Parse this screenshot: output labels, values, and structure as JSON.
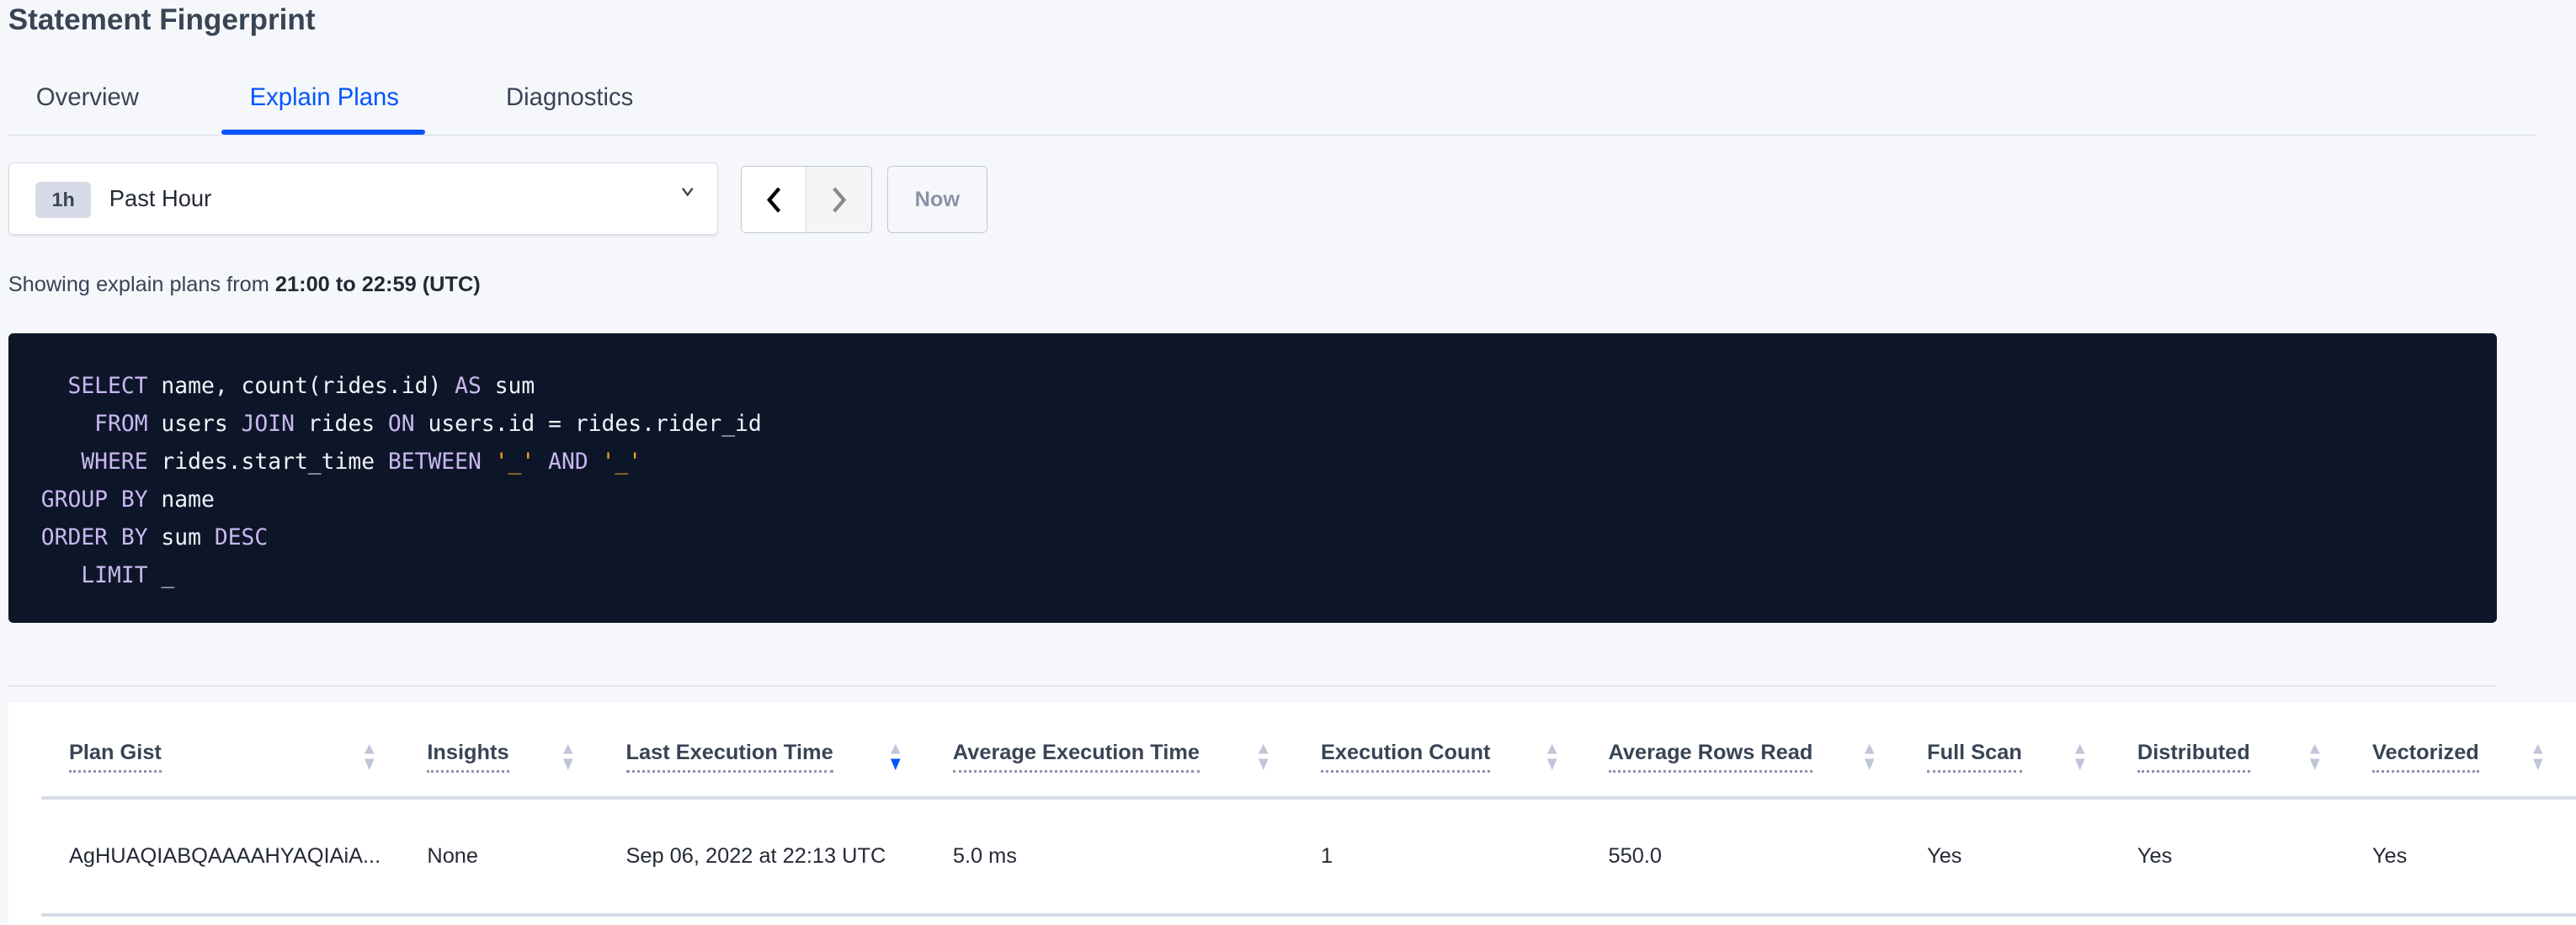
{
  "page_title": "Statement Fingerprint",
  "tabs": [
    {
      "label": "Overview",
      "active": false
    },
    {
      "label": "Explain Plans",
      "active": true
    },
    {
      "label": "Diagnostics",
      "active": false
    }
  ],
  "time_picker": {
    "badge": "1h",
    "selected": "Past Hour",
    "now_label": "Now"
  },
  "showing": {
    "prefix": "Showing explain plans from ",
    "range": "21:00 to 22:59 (UTC)"
  },
  "sql": [
    [
      [
        "kw",
        "  SELECT"
      ],
      [
        "t",
        " name, count(rides.id) "
      ],
      [
        "kw",
        "AS"
      ],
      [
        "t",
        " sum"
      ]
    ],
    [
      [
        "kw",
        "    FROM"
      ],
      [
        "t",
        " users "
      ],
      [
        "kw",
        "JOIN"
      ],
      [
        "t",
        " rides "
      ],
      [
        "kw",
        "ON"
      ],
      [
        "t",
        " users.id = rides.rider_id"
      ]
    ],
    [
      [
        "kw",
        "   WHERE"
      ],
      [
        "t",
        " rides.start_time "
      ],
      [
        "kw",
        "BETWEEN"
      ],
      [
        "t",
        " "
      ],
      [
        "str",
        "'_'"
      ],
      [
        "t",
        " "
      ],
      [
        "kw",
        "AND"
      ],
      [
        "t",
        " "
      ],
      [
        "str",
        "'_'"
      ]
    ],
    [
      [
        "kw",
        "GROUP BY"
      ],
      [
        "t",
        " name"
      ]
    ],
    [
      [
        "kw",
        "ORDER BY"
      ],
      [
        "t",
        " sum "
      ],
      [
        "kw",
        "DESC"
      ]
    ],
    [
      [
        "kw",
        "   LIMIT"
      ],
      [
        "t",
        " _"
      ]
    ]
  ],
  "table": {
    "columns": [
      {
        "label": "Plan Gist",
        "sort": "none"
      },
      {
        "label": "Insights",
        "sort": "none"
      },
      {
        "label": "Last Execution Time",
        "sort": "desc"
      },
      {
        "label": "Average Execution Time",
        "sort": "none"
      },
      {
        "label": "Execution Count",
        "sort": "none"
      },
      {
        "label": "Average Rows Read",
        "sort": "none"
      },
      {
        "label": "Full Scan",
        "sort": "none"
      },
      {
        "label": "Distributed",
        "sort": "none"
      },
      {
        "label": "Vectorized",
        "sort": "none"
      }
    ],
    "rows": [
      [
        "AgHUAQIABQAAAAHYAQIAiA...",
        "None",
        "Sep 06, 2022 at 22:13 UTC",
        "5.0 ms",
        "1",
        "550.0",
        "Yes",
        "Yes",
        "Yes"
      ]
    ]
  },
  "colors": {
    "accent": "#0055ff",
    "code_bg": "#0d1629",
    "keyword": "#c9b8f0",
    "string": "#f5a623"
  }
}
